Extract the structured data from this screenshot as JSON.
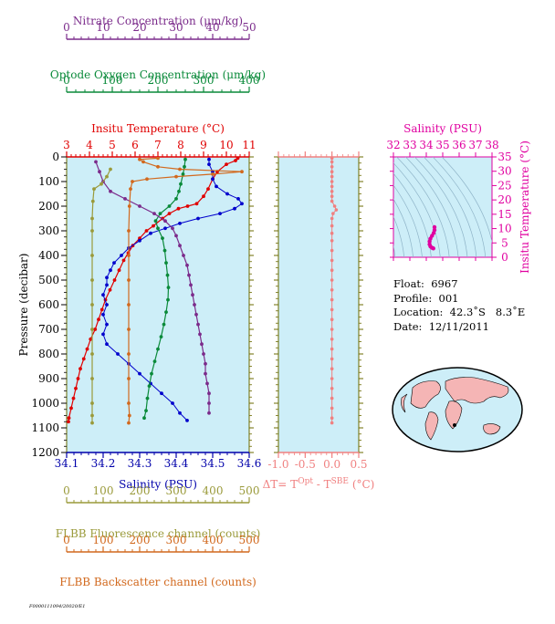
{
  "chart_data": [
    {
      "type": "line",
      "name": "main-profile",
      "y_axis": {
        "label": "Pressure (decibar)",
        "range": [
          0,
          1200
        ],
        "ticks": [
          0,
          100,
          200,
          300,
          400,
          500,
          600,
          700,
          800,
          900,
          1000,
          1100,
          1200
        ],
        "reversed": true
      },
      "x_axes": [
        {
          "id": "nitrate",
          "label": "Nitrate Concentration (μm/kg)",
          "range": [
            0,
            50
          ],
          "ticks": [
            0,
            10,
            20,
            30,
            40,
            50
          ],
          "color": "#7b2b8b"
        },
        {
          "id": "oxygen",
          "label": "Optode Oxygen Concentration (μm/kg)",
          "range": [
            0,
            400
          ],
          "ticks": [
            0,
            100,
            200,
            300,
            400
          ],
          "color": "#0a8a3a"
        },
        {
          "id": "temp",
          "label": "Insitu Temperature (°C)",
          "range": [
            3,
            11
          ],
          "ticks": [
            3,
            4,
            5,
            6,
            7,
            8,
            9,
            10,
            11
          ],
          "color": "#e00000"
        },
        {
          "id": "sal",
          "label": "Salinity (PSU)",
          "range": [
            34.1,
            34.6
          ],
          "ticks": [
            "34.1",
            "34.2",
            "34.3",
            "34.4",
            "34.5",
            "34.6"
          ],
          "color": "#0000aa"
        },
        {
          "id": "flu",
          "label": "FLBB Fluorescence channel (counts)",
          "range": [
            0,
            500
          ],
          "ticks": [
            0,
            100,
            200,
            300,
            400,
            500
          ],
          "color": "#9a9a3a"
        },
        {
          "id": "bb",
          "label": "FLBB Backscatter channel (counts)",
          "range": [
            0,
            500
          ],
          "ticks": [
            0,
            100,
            200,
            300,
            400,
            500
          ],
          "color": "#d2691e"
        }
      ],
      "series": [
        {
          "axis": "temp",
          "color": "#e00000",
          "points": [
            [
              10.5,
              5
            ],
            [
              10.4,
              15
            ],
            [
              10.0,
              30
            ],
            [
              9.6,
              60
            ],
            [
              9.4,
              90
            ],
            [
              9.2,
              130
            ],
            [
              9.0,
              160
            ],
            [
              8.7,
              190
            ],
            [
              8.3,
              200
            ],
            [
              7.9,
              210
            ],
            [
              7.5,
              230
            ],
            [
              7.2,
              250
            ],
            [
              6.8,
              280
            ],
            [
              6.5,
              300
            ],
            [
              6.2,
              330
            ],
            [
              5.9,
              360
            ],
            [
              5.7,
              390
            ],
            [
              5.5,
              420
            ],
            [
              5.3,
              460
            ],
            [
              5.1,
              500
            ],
            [
              4.9,
              540
            ],
            [
              4.7,
              580
            ],
            [
              4.55,
              620
            ],
            [
              4.4,
              660
            ],
            [
              4.25,
              700
            ],
            [
              4.05,
              740
            ],
            [
              3.9,
              780
            ],
            [
              3.75,
              820
            ],
            [
              3.6,
              860
            ],
            [
              3.5,
              900
            ],
            [
              3.4,
              940
            ],
            [
              3.3,
              980
            ],
            [
              3.2,
              1020
            ],
            [
              3.1,
              1060
            ],
            [
              3.08,
              1075
            ]
          ]
        },
        {
          "axis": "sal",
          "color": "#0000cc",
          "points": [
            [
              34.49,
              10
            ],
            [
              34.49,
              30
            ],
            [
              34.5,
              60
            ],
            [
              34.5,
              90
            ],
            [
              34.51,
              120
            ],
            [
              34.54,
              150
            ],
            [
              34.57,
              170
            ],
            [
              34.58,
              190
            ],
            [
              34.56,
              210
            ],
            [
              34.52,
              230
            ],
            [
              34.46,
              250
            ],
            [
              34.41,
              270
            ],
            [
              34.37,
              290
            ],
            [
              34.33,
              310
            ],
            [
              34.3,
              340
            ],
            [
              34.27,
              370
            ],
            [
              34.25,
              400
            ],
            [
              34.23,
              430
            ],
            [
              34.22,
              460
            ],
            [
              34.21,
              490
            ],
            [
              34.21,
              520
            ],
            [
              34.2,
              560
            ],
            [
              34.21,
              600
            ],
            [
              34.2,
              640
            ],
            [
              34.21,
              680
            ],
            [
              34.2,
              720
            ],
            [
              34.21,
              760
            ],
            [
              34.24,
              800
            ],
            [
              34.27,
              840
            ],
            [
              34.3,
              880
            ],
            [
              34.33,
              920
            ],
            [
              34.36,
              960
            ],
            [
              34.39,
              1000
            ],
            [
              34.41,
              1040
            ],
            [
              34.43,
              1070
            ]
          ]
        },
        {
          "axis": "oxygen",
          "color": "#0a8a3a",
          "points": [
            [
              260,
              10
            ],
            [
              258,
              40
            ],
            [
              255,
              70
            ],
            [
              250,
              110
            ],
            [
              246,
              140
            ],
            [
              240,
              170
            ],
            [
              225,
              200
            ],
            [
              205,
              230
            ],
            [
              195,
              260
            ],
            [
              200,
              290
            ],
            [
              210,
              330
            ],
            [
              215,
              380
            ],
            [
              218,
              430
            ],
            [
              221,
              480
            ],
            [
              223,
              530
            ],
            [
              222,
              580
            ],
            [
              218,
              630
            ],
            [
              213,
              680
            ],
            [
              207,
              730
            ],
            [
              200,
              780
            ],
            [
              193,
              830
            ],
            [
              186,
              880
            ],
            [
              181,
              930
            ],
            [
              177,
              980
            ],
            [
              174,
              1030
            ],
            [
              170,
              1060
            ]
          ]
        },
        {
          "axis": "nitrate",
          "color": "#7b2b8b",
          "points": [
            [
              8,
              20
            ],
            [
              9,
              60
            ],
            [
              10,
              100
            ],
            [
              12,
              140
            ],
            [
              16,
              170
            ],
            [
              20,
              200
            ],
            [
              24,
              230
            ],
            [
              27,
              260
            ],
            [
              29,
              290
            ],
            [
              30,
              320
            ],
            [
              31,
              360
            ],
            [
              32,
              400
            ],
            [
              33,
              440
            ],
            [
              33.5,
              480
            ],
            [
              34,
              520
            ],
            [
              34.5,
              560
            ],
            [
              35,
              600
            ],
            [
              35.5,
              640
            ],
            [
              36,
              680
            ],
            [
              36.5,
              720
            ],
            [
              37,
              760
            ],
            [
              37.5,
              800
            ],
            [
              38,
              840
            ],
            [
              38,
              880
            ],
            [
              38.5,
              920
            ],
            [
              39,
              960
            ],
            [
              39,
              1000
            ],
            [
              39,
              1040
            ]
          ]
        },
        {
          "axis": "flu",
          "color": "#9a9a3a",
          "points": [
            [
              120,
              50
            ],
            [
              110,
              80
            ],
            [
              95,
              110
            ],
            [
              75,
              130
            ],
            [
              72,
              180
            ],
            [
              70,
              250
            ],
            [
              70,
              300
            ],
            [
              70,
              400
            ],
            [
              70,
              500
            ],
            [
              70,
              600
            ],
            [
              70,
              700
            ],
            [
              70,
              800
            ],
            [
              70,
              900
            ],
            [
              70,
              1000
            ],
            [
              70,
              1050
            ],
            [
              70,
              1080
            ]
          ]
        },
        {
          "axis": "bb",
          "color": "#d2691e",
          "points": [
            [
              250,
              5
            ],
            [
              200,
              10
            ],
            [
              210,
              20
            ],
            [
              250,
              40
            ],
            [
              310,
              50
            ],
            [
              480,
              60
            ],
            [
              400,
              70
            ],
            [
              300,
              80
            ],
            [
              220,
              90
            ],
            [
              180,
              100
            ],
            [
              175,
              130
            ],
            [
              172,
              200
            ],
            [
              170,
              300
            ],
            [
              170,
              400
            ],
            [
              170,
              500
            ],
            [
              170,
              600
            ],
            [
              170,
              700
            ],
            [
              170,
              800
            ],
            [
              170,
              900
            ],
            [
              170,
              1000
            ],
            [
              172,
              1050
            ],
            [
              170,
              1080
            ]
          ]
        }
      ]
    },
    {
      "type": "scatter",
      "name": "delta-temperature",
      "xlabel": "ΔT= T",
      "xlabel_sup1": "Opt",
      "xlabel_mid": " - T",
      "xlabel_sup2": "SBE",
      "xlabel_unit": " (°C)",
      "x_range": [
        -1.0,
        0.5
      ],
      "x_ticks": [
        "-1.0",
        "-0.5",
        "0.0",
        "0.5"
      ],
      "y_range": [
        0,
        1200
      ],
      "color": "#f08080",
      "points": [
        [
          0.0,
          5
        ],
        [
          0.0,
          20
        ],
        [
          0.0,
          40
        ],
        [
          0.0,
          60
        ],
        [
          0.0,
          80
        ],
        [
          0.0,
          100
        ],
        [
          0.0,
          120
        ],
        [
          0.0,
          140
        ],
        [
          0.0,
          160
        ],
        [
          0.0,
          180
        ],
        [
          0.05,
          200
        ],
        [
          0.08,
          215
        ],
        [
          0.02,
          230
        ],
        [
          0.0,
          250
        ],
        [
          0.0,
          280
        ],
        [
          0.0,
          310
        ],
        [
          0.0,
          340
        ],
        [
          0.0,
          380
        ],
        [
          0.0,
          420
        ],
        [
          0.0,
          460
        ],
        [
          0.0,
          500
        ],
        [
          0.0,
          540
        ],
        [
          0.0,
          580
        ],
        [
          0.0,
          620
        ],
        [
          0.0,
          660
        ],
        [
          0.0,
          700
        ],
        [
          0.0,
          740
        ],
        [
          0.0,
          780
        ],
        [
          0.0,
          820
        ],
        [
          0.0,
          860
        ],
        [
          0.0,
          900
        ],
        [
          0.0,
          940
        ],
        [
          0.0,
          980
        ],
        [
          0.0,
          1020
        ],
        [
          0.0,
          1060
        ],
        [
          0.0,
          1080
        ]
      ]
    },
    {
      "type": "scatter",
      "name": "ts-diagram",
      "xlabel": "Salinity (PSU)",
      "x_range": [
        32,
        38
      ],
      "x_ticks": [
        "32",
        "33",
        "34",
        "35",
        "36",
        "37",
        "38"
      ],
      "ylabel": "Insitu Temperature (°C)",
      "y_range": [
        0,
        35
      ],
      "y_ticks": [
        "0",
        "5",
        "10",
        "15",
        "20",
        "25",
        "30",
        "35"
      ],
      "color": "#e000a0",
      "points": [
        [
          34.5,
          10.5
        ],
        [
          34.5,
          9.5
        ],
        [
          34.45,
          8.5
        ],
        [
          34.35,
          7.5
        ],
        [
          34.25,
          6.5
        ],
        [
          34.2,
          5.5
        ],
        [
          34.2,
          4.5
        ],
        [
          34.25,
          3.8
        ],
        [
          34.35,
          3.3
        ],
        [
          34.43,
          3.1
        ]
      ]
    }
  ],
  "info": {
    "float": "Float:  6967",
    "profile": "Profile:  001",
    "location": "Location:  42.3˚S   8.3˚E",
    "date": "Date:  12/11/2011"
  },
  "footer_text": "F0000111094/20020/E1"
}
